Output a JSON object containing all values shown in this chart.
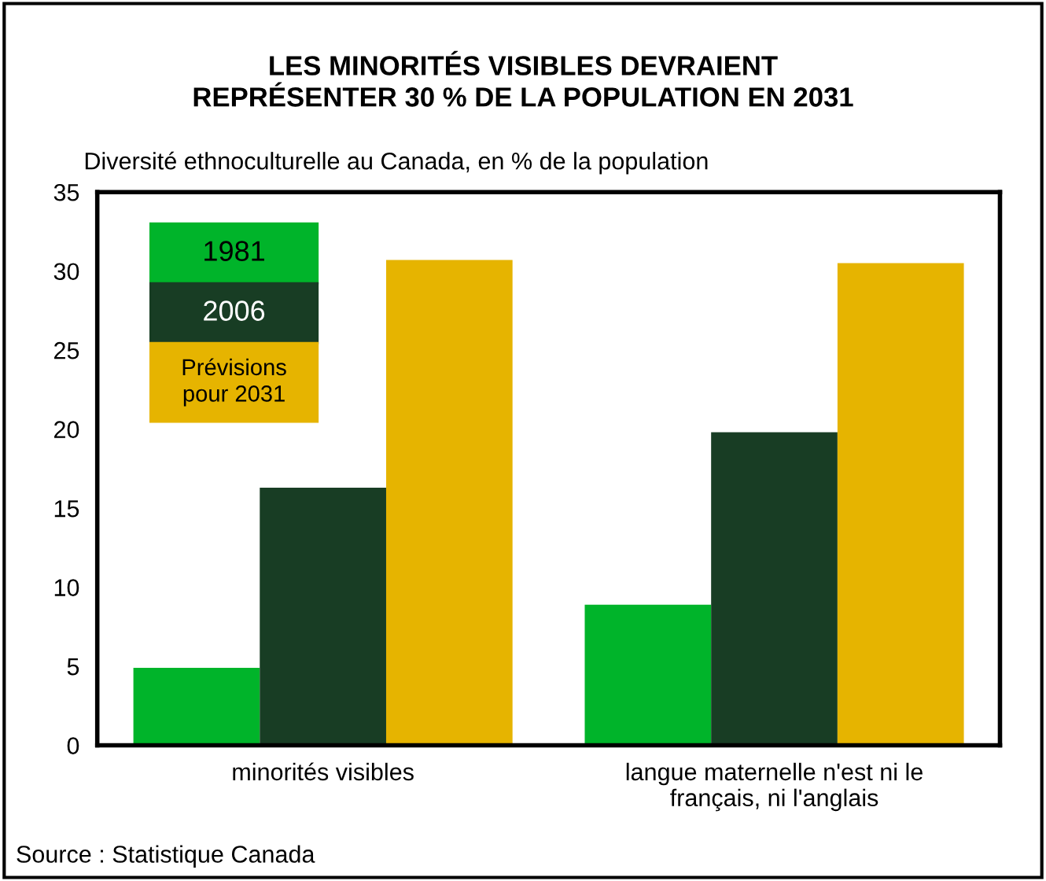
{
  "chart_data": {
    "type": "bar",
    "title": "LES MINORITÉS VISIBLES DEVRAIENT\nREPRÉSENTER 30 % DE LA POPULATION EN 2031",
    "subtitle": "Diversité ethnoculturelle au Canada, en % de la population",
    "categories": [
      "minorités visibles",
      "langue maternelle n'est ni le\nfrançais, ni l'anglais"
    ],
    "series": [
      {
        "name": "1981",
        "color": "#00b42a",
        "values": [
          4.9,
          8.9
        ]
      },
      {
        "name": "2006",
        "color": "#183d24",
        "values": [
          16.3,
          19.8
        ]
      },
      {
        "name": "Prévisions\npour 2031",
        "color": "#e6b400",
        "values": [
          30.7,
          30.5
        ]
      }
    ],
    "ylim": [
      0,
      35
    ],
    "yticks": [
      0,
      5,
      10,
      15,
      20,
      25,
      30,
      35
    ],
    "grid": false,
    "legend": "top left",
    "annotations": [
      "Source : Statistique Canada"
    ]
  }
}
